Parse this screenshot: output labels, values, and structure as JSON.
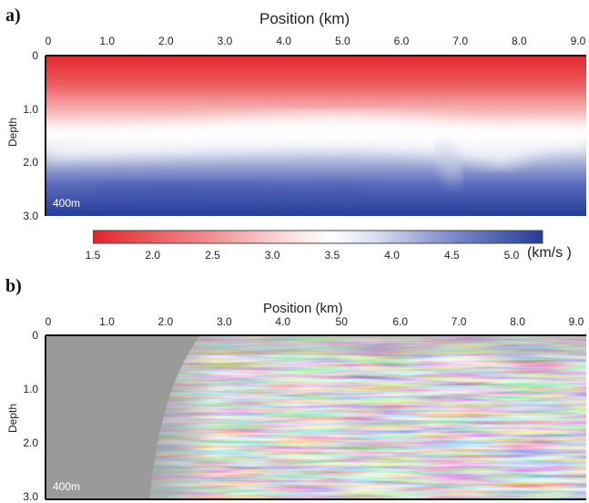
{
  "figure": {
    "panel_a": {
      "label": "a)",
      "title": "Position (km)",
      "x_ticks": [
        "0",
        "1.0",
        "2.0",
        "3.0",
        "4.0",
        "5.0",
        "6.0",
        "7.0",
        "8.0",
        "9.0"
      ],
      "y_ticks": [
        "0",
        "1.0",
        "2.0",
        "3.0"
      ],
      "ylabel": "Depth",
      "scale_note": "400m",
      "colorbar": {
        "ticks": [
          "1.5",
          "2.0",
          "2.5",
          "3.0",
          "3.5",
          "4.0",
          "4.5",
          "5.0"
        ],
        "unit": "(km/s )",
        "colors": [
          "#e3262b",
          "#ffffff",
          "#243d9a"
        ]
      }
    },
    "panel_b": {
      "label": "b)",
      "title": "Position (km)",
      "x_ticks": [
        "0",
        "1.0",
        "2.0",
        "3.0",
        "4.0",
        "50",
        "6.0",
        "7.0",
        "8.0",
        "9.0"
      ],
      "y_ticks": [
        "0",
        "1.0",
        "2.0",
        "3.0"
      ],
      "ylabel": "Depth",
      "scale_note": "400m"
    }
  }
}
